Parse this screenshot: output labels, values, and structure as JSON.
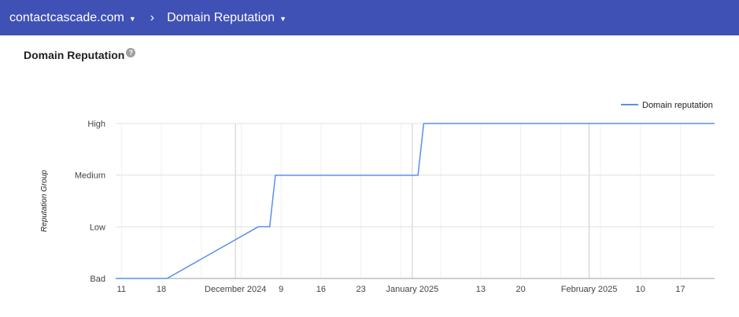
{
  "header": {
    "domain": "contactcascade.com",
    "separator": "›",
    "section": "Domain Reputation"
  },
  "page": {
    "title": "Domain Reputation",
    "help_glyph": "?"
  },
  "colors": {
    "topbar": "#3f51b5",
    "line": "#5c8fe6"
  },
  "chart_data": {
    "type": "line",
    "title": "",
    "xlabel": "",
    "ylabel": "Reputation Group",
    "y_categories": [
      "Bad",
      "Low",
      "Medium",
      "High"
    ],
    "legend": "top-right",
    "x_range": [
      "2024-11-10",
      "2025-02-23"
    ],
    "x_ticks": [
      {
        "date": "2024-11-11",
        "label": "11",
        "major": false
      },
      {
        "date": "2024-11-18",
        "label": "18",
        "major": false
      },
      {
        "date": "2024-12-01",
        "label": "December 2024",
        "major": true
      },
      {
        "date": "2024-12-09",
        "label": "9",
        "major": false
      },
      {
        "date": "2024-12-16",
        "label": "16",
        "major": false
      },
      {
        "date": "2024-12-23",
        "label": "23",
        "major": false
      },
      {
        "date": "2025-01-01",
        "label": "January 2025",
        "major": true
      },
      {
        "date": "2025-01-13",
        "label": "13",
        "major": false
      },
      {
        "date": "2025-01-20",
        "label": "20",
        "major": false
      },
      {
        "date": "2025-02-01",
        "label": "February 2025",
        "major": true
      },
      {
        "date": "2025-02-10",
        "label": "10",
        "major": false
      },
      {
        "date": "2025-02-17",
        "label": "17",
        "major": false
      }
    ],
    "series": [
      {
        "name": "Domain reputation",
        "color": "#5c8fe6",
        "points": [
          {
            "x": "2024-11-10",
            "y": "Bad"
          },
          {
            "x": "2024-11-19",
            "y": "Bad"
          },
          {
            "x": "2024-12-05",
            "y": "Low"
          },
          {
            "x": "2024-12-07",
            "y": "Low"
          },
          {
            "x": "2024-12-08",
            "y": "Medium"
          },
          {
            "x": "2025-01-02",
            "y": "Medium"
          },
          {
            "x": "2025-01-03",
            "y": "High"
          },
          {
            "x": "2025-02-23",
            "y": "High"
          }
        ]
      }
    ]
  }
}
